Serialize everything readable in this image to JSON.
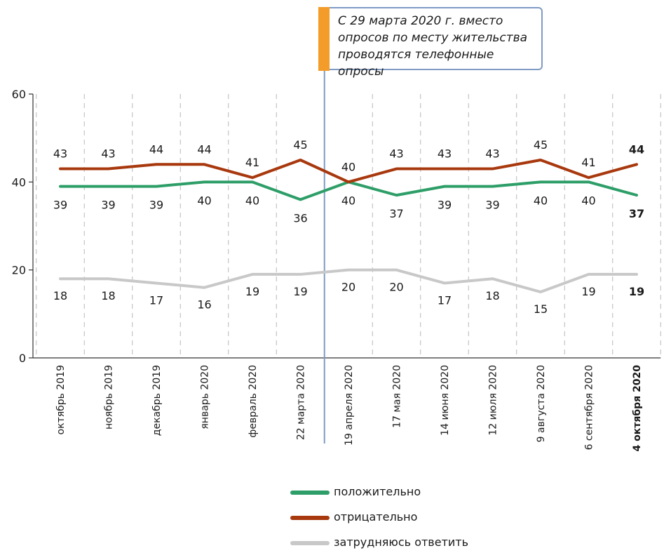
{
  "note": {
    "lines": [
      "С 29 марта 2020 г. вместо",
      "опросов по месту жительства",
      "проводятся телефонные опросы"
    ]
  },
  "colors": {
    "positive": "#2e9e68",
    "negative": "#a8380d",
    "undecided": "#c8c8c8",
    "divider": "#7f9bc4",
    "note_accent": "#f39c2a",
    "grid": "#b8b8b8"
  },
  "chart_data": {
    "type": "line",
    "categories": [
      "октябрь 2019",
      "ноябрь 2019",
      "декабрь 2019",
      "январь 2020",
      "февраль 2020",
      "22 марта 2020",
      "19 апреля 2020",
      "17 мая 2020",
      "14 июня 2020",
      "12 июля 2020",
      "9 августа 2020",
      "6 сентября 2020",
      "4 октября 2020"
    ],
    "series": [
      {
        "name": "положительно",
        "color_key": "positive",
        "values": [
          39,
          39,
          39,
          40,
          40,
          36,
          40,
          37,
          39,
          39,
          40,
          40,
          37
        ],
        "labels": [
          "39",
          "39",
          "39",
          "40",
          "40",
          "36",
          "40",
          "37",
          "39",
          "39",
          "40",
          "40",
          "37"
        ]
      },
      {
        "name": "отрицательно",
        "color_key": "negative",
        "values": [
          43,
          43,
          44,
          44,
          41,
          45,
          40,
          43,
          43,
          43,
          45,
          41,
          44
        ],
        "labels": [
          "43",
          "43",
          "44",
          "44",
          "41",
          "45",
          "40",
          "43",
          "43",
          "43",
          "45",
          "41",
          "44"
        ]
      },
      {
        "name": "затрудняюсь ответить",
        "color_key": "undecided",
        "values": [
          18,
          18,
          17,
          16,
          19,
          19,
          20,
          20,
          17,
          18,
          15,
          19,
          19
        ],
        "labels": [
          "18",
          "18",
          "17",
          "16",
          "19",
          "19",
          "20",
          "20",
          "17",
          "18",
          "15",
          "19",
          "19"
        ]
      }
    ],
    "ylim": [
      0,
      60
    ],
    "yticks": [
      0,
      20,
      40,
      60
    ],
    "ytick_labels": [
      "0",
      "20",
      "40",
      "60"
    ],
    "divider_between": [
      5,
      6
    ],
    "last_category_bold": true,
    "grid": "vertical dashed",
    "legend_position": "bottom-center"
  }
}
